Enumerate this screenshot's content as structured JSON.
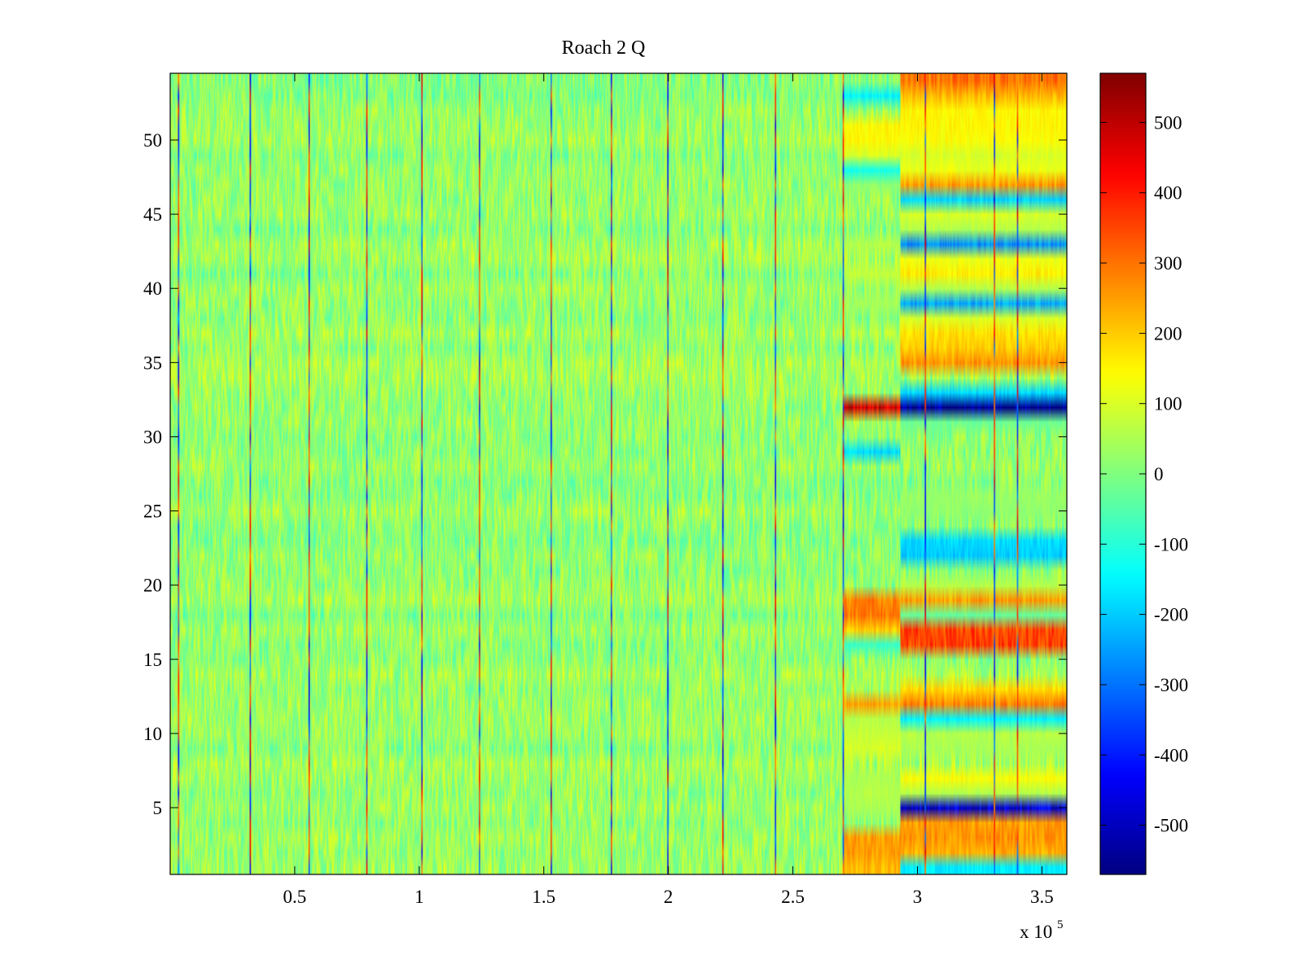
{
  "chart_data": {
    "type": "heatmap",
    "title": "Roach 2 Q",
    "xlabel": "",
    "ylabel": "",
    "x_range": [
      0,
      360000
    ],
    "y_range": [
      1,
      54
    ],
    "x_ticks": [
      50000,
      100000,
      150000,
      200000,
      250000,
      300000,
      350000
    ],
    "x_tick_labels": [
      "0.5",
      "1",
      "1.5",
      "2",
      "2.5",
      "3",
      "3.5"
    ],
    "x_multiplier": "x 10",
    "x_multiplier_exponent": "5",
    "y_ticks": [
      5,
      10,
      15,
      20,
      25,
      30,
      35,
      40,
      45,
      50
    ],
    "y_tick_labels": [
      "5",
      "10",
      "15",
      "20",
      "25",
      "30",
      "35",
      "40",
      "45",
      "50"
    ],
    "colorbar": {
      "range": [
        -570,
        570
      ],
      "colormap": "jet",
      "ticks": [
        500,
        400,
        300,
        200,
        100,
        0,
        -100,
        -200,
        -300,
        -400,
        -500
      ],
      "tick_labels": [
        "500",
        "400",
        "300",
        "200",
        "100",
        "0",
        "-100",
        "-200",
        "-300",
        "-400",
        "-500"
      ]
    },
    "grid": false,
    "base_noise_range": [
      -60,
      90
    ],
    "vertical_event_lines_x": [
      3300,
      32000,
      56000,
      79000,
      101000,
      124000,
      153000,
      177000,
      200000,
      222000,
      243000,
      270000,
      303000,
      331000,
      340000
    ],
    "segments": [
      {
        "x_range": [
          270000,
          293000
        ],
        "row_values": {
          "1": 220,
          "2": 250,
          "3": 250,
          "5": 50,
          "6": 60,
          "7": 50,
          "9": 100,
          "10": 80,
          "11": 60,
          "12": 250,
          "16": -80,
          "17": 200,
          "18": 300,
          "19": 280,
          "29": -180,
          "32": 480,
          "39": 40,
          "41": 80,
          "43": 60,
          "47": 20,
          "48": -120,
          "49": 100,
          "50": 150,
          "51": 150,
          "53": -150
        }
      },
      {
        "x_range": [
          293000,
          360000
        ],
        "row_values": {
          "1": -160,
          "2": 230,
          "3": 260,
          "4": 250,
          "5": -480,
          "6": 60,
          "7": 140,
          "9": 50,
          "10": 60,
          "11": -150,
          "12": 280,
          "13": 180,
          "16": 350,
          "17": 350,
          "18": -30,
          "19": 250,
          "20": 60,
          "22": -200,
          "23": -180,
          "25": 20,
          "26": 30,
          "31": -20,
          "32": -570,
          "33": -180,
          "35": 260,
          "36": 200,
          "37": 180,
          "38": 100,
          "39": -240,
          "40": 60,
          "41": 160,
          "42": 120,
          "43": -270,
          "44": 60,
          "45": 100,
          "46": -190,
          "47": 250,
          "48": 120,
          "49": 100,
          "50": 140,
          "51": 150,
          "52": 150,
          "53": 220,
          "54": 300
        }
      }
    ]
  }
}
